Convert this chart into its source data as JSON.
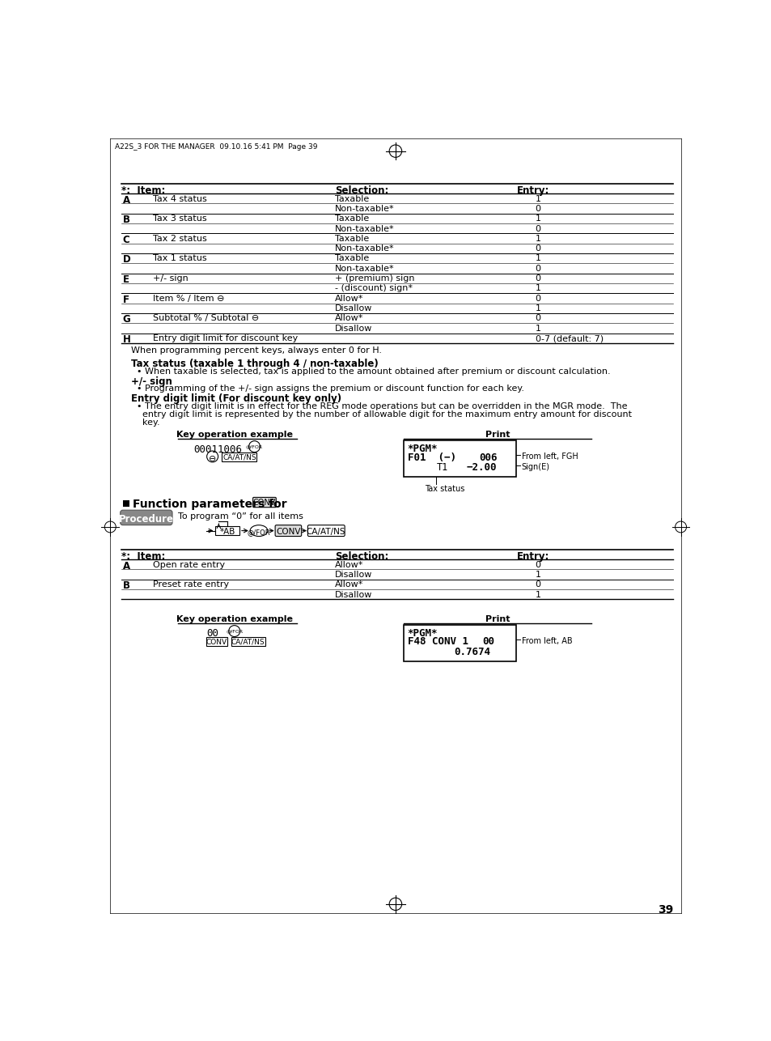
{
  "page_header": "A22S_3 FOR THE MANAGER  09.10.16 5:41 PM  Page 39",
  "page_number": "39",
  "bg_color": "#ffffff",
  "table1_rows": [
    [
      "A",
      "Tax 4 status",
      "Taxable",
      "1"
    ],
    [
      "",
      "",
      "Non-taxable*",
      "0"
    ],
    [
      "B",
      "Tax 3 status",
      "Taxable",
      "1"
    ],
    [
      "",
      "",
      "Non-taxable*",
      "0"
    ],
    [
      "C",
      "Tax 2 status",
      "Taxable",
      "1"
    ],
    [
      "",
      "",
      "Non-taxable*",
      "0"
    ],
    [
      "D",
      "Tax 1 status",
      "Taxable",
      "1"
    ],
    [
      "",
      "",
      "Non-taxable*",
      "0"
    ],
    [
      "E",
      "+/- sign",
      "+ (premium) sign",
      "0"
    ],
    [
      "",
      "",
      "- (discount) sign*",
      "1"
    ],
    [
      "F",
      "Item % / Item ⊖",
      "Allow*",
      "0"
    ],
    [
      "",
      "",
      "Disallow",
      "1"
    ],
    [
      "G",
      "Subtotal % / Subtotal ⊖",
      "Allow*",
      "0"
    ],
    [
      "",
      "",
      "Disallow",
      "1"
    ],
    [
      "H",
      "Entry digit limit for discount key",
      "",
      "0-7 (default: 7)"
    ]
  ],
  "note1": "When programming percent keys, always enter 0 for H.",
  "section_tax_title": "Tax status (taxable 1 through 4 / non-taxable)",
  "section_tax_body": "  • When taxable is selected, tax is applied to the amount obtained after premium or discount calculation.",
  "section_sign_title": "+/- sign",
  "section_sign_body": "  • Programming of the +/- sign assigns the premium or discount function for each key.",
  "section_entry_title": "Entry digit limit (For discount key only)",
  "section_entry_body1": "  • The entry digit limit is in effect for the REG mode operations but can be overridden in the MGR mode.  The",
  "section_entry_body2": "    entry digit limit is represented by the number of allowable digit for the maximum entry amount for discount",
  "section_entry_body3": "    key.",
  "func_section_title": "Function parameters for",
  "func_section_key": "CONV",
  "procedure_label": "Procedure",
  "procedure_note": "To program “0” for all items",
  "table2_rows": [
    [
      "A",
      "Open rate entry",
      "Allow*",
      "0"
    ],
    [
      "",
      "",
      "Disallow",
      "1"
    ],
    [
      "B",
      "Preset rate entry",
      "Allow*",
      "0"
    ],
    [
      "",
      "",
      "Disallow",
      "1"
    ]
  ],
  "print_annot2": "From left, AB"
}
